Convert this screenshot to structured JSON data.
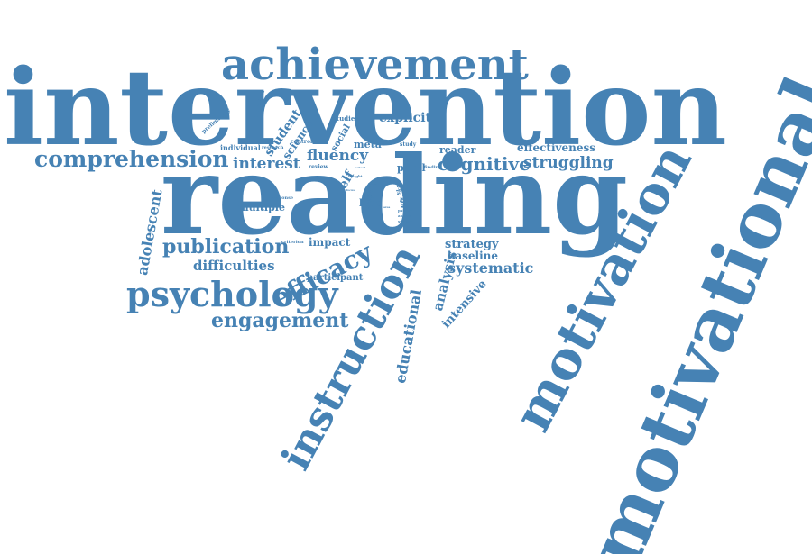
{
  "word_color": "#4682b4",
  "background": "#ffffff",
  "words": [
    {
      "text": "intervention",
      "weight": 100
    },
    {
      "text": "reading",
      "weight": 88
    },
    {
      "text": "motivational",
      "weight": 95
    },
    {
      "text": "motivation",
      "weight": 70
    },
    {
      "text": "instruction",
      "weight": 58
    },
    {
      "text": "achievement",
      "weight": 45
    },
    {
      "text": "psychology",
      "weight": 40
    },
    {
      "text": "comprehension",
      "weight": 32
    },
    {
      "text": "efficacy",
      "weight": 32
    },
    {
      "text": "publication",
      "weight": 26
    },
    {
      "text": "engagement",
      "weight": 24
    },
    {
      "text": "struggling",
      "weight": 22
    },
    {
      "text": "cognitive",
      "weight": 22
    },
    {
      "text": "fluency",
      "weight": 21
    },
    {
      "text": "interest",
      "weight": 20
    },
    {
      "text": "systematic",
      "weight": 20
    },
    {
      "text": "difficulties",
      "weight": 18
    },
    {
      "text": "educational",
      "weight": 18
    },
    {
      "text": "adolescent",
      "weight": 18
    },
    {
      "text": "analysis",
      "weight": 18
    },
    {
      "text": "intensive",
      "weight": 15
    },
    {
      "text": "student",
      "weight": 16
    },
    {
      "text": "science",
      "weight": 14
    },
    {
      "text": "explicit",
      "weight": 16
    },
    {
      "text": "effectiveness",
      "weight": 14
    },
    {
      "text": "strategy",
      "weight": 16
    },
    {
      "text": "baseline",
      "weight": 15
    },
    {
      "text": "impact",
      "weight": 14
    },
    {
      "text": "participant",
      "weight": 12
    },
    {
      "text": "multiple",
      "weight": 14
    },
    {
      "text": "reader",
      "weight": 12
    },
    {
      "text": "pupil",
      "weight": 12
    },
    {
      "text": "meta",
      "weight": 12
    },
    {
      "text": "social",
      "weight": 12
    },
    {
      "text": "self",
      "weight": 14
    },
    {
      "text": "bias",
      "weight": 12
    },
    {
      "text": "individual",
      "weight": 10
    },
    {
      "text": "inclusion",
      "weight": 9
    },
    {
      "text": "preliminary",
      "weight": 8
    },
    {
      "text": "studies",
      "weight": 9
    },
    {
      "text": "control",
      "weight": 8
    },
    {
      "text": "review",
      "weight": 8
    },
    {
      "text": "study",
      "weight": 8
    },
    {
      "text": "finding",
      "weight": 7
    },
    {
      "text": "research",
      "weight": 7
    },
    {
      "text": "response",
      "weight": 7
    },
    {
      "text": "criterion",
      "weight": 7
    },
    {
      "text": "risk",
      "weight": 9
    },
    {
      "text": "skill",
      "weight": 8
    },
    {
      "text": "effect",
      "weight": 9
    },
    {
      "text": "group",
      "weight": 7
    },
    {
      "text": "pattern",
      "weight": 6
    },
    {
      "text": "analyse",
      "weight": 6
    },
    {
      "text": "support",
      "weight": 6
    },
    {
      "text": "insight",
      "weight": 6
    },
    {
      "text": "focus",
      "weight": 6
    },
    {
      "text": "area",
      "weight": 6
    },
    {
      "text": "size",
      "weight": 6
    },
    {
      "text": "school",
      "weight": 6
    },
    {
      "text": "literacy",
      "weight": 6
    }
  ]
}
